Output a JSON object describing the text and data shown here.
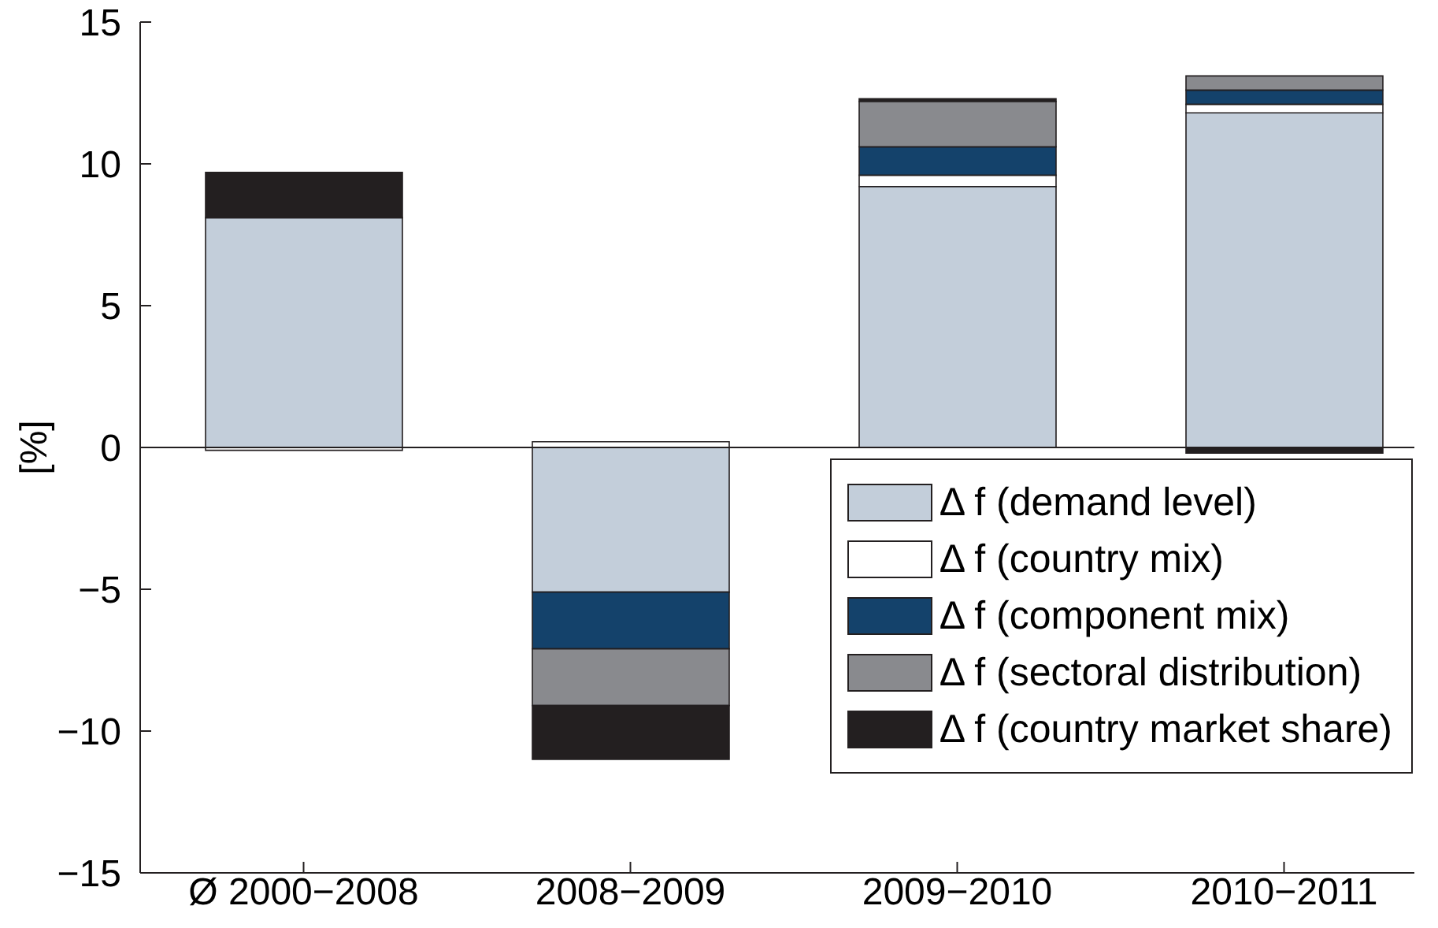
{
  "chart_data": {
    "type": "bar",
    "stacked": true,
    "categories": [
      "Ø 2000−2008",
      "2008−2009",
      "2009−2010",
      "2010−2011"
    ],
    "ylabel": "[%]",
    "ylim": [
      -15,
      15
    ],
    "yticks": [
      -15,
      -10,
      -5,
      0,
      5,
      10,
      15
    ],
    "legend": "bottom right",
    "ref_lines": [
      {
        "axis": "y",
        "value": 0,
        "color": "#231f20"
      }
    ],
    "series": [
      {
        "name": "Δ f (demand level)",
        "color": "#c3ceda",
        "values": [
          8.1,
          -5.1,
          9.2,
          11.8
        ]
      },
      {
        "name": "Δ f (country mix)",
        "color": "#ffffff",
        "values": [
          -0.1,
          0.2,
          0.4,
          0.3
        ]
      },
      {
        "name": "Δ f (component mix)",
        "color": "#14426b",
        "values": [
          0,
          -2.0,
          1.0,
          0.5
        ]
      },
      {
        "name": "Δ f (sectoral distribution)",
        "color": "#898a8e",
        "values": [
          0,
          -2.0,
          1.6,
          0.5
        ]
      },
      {
        "name": "Δ f (country market share)",
        "color": "#231f20",
        "values": [
          1.6,
          -1.9,
          0.1,
          -0.2
        ]
      }
    ]
  }
}
